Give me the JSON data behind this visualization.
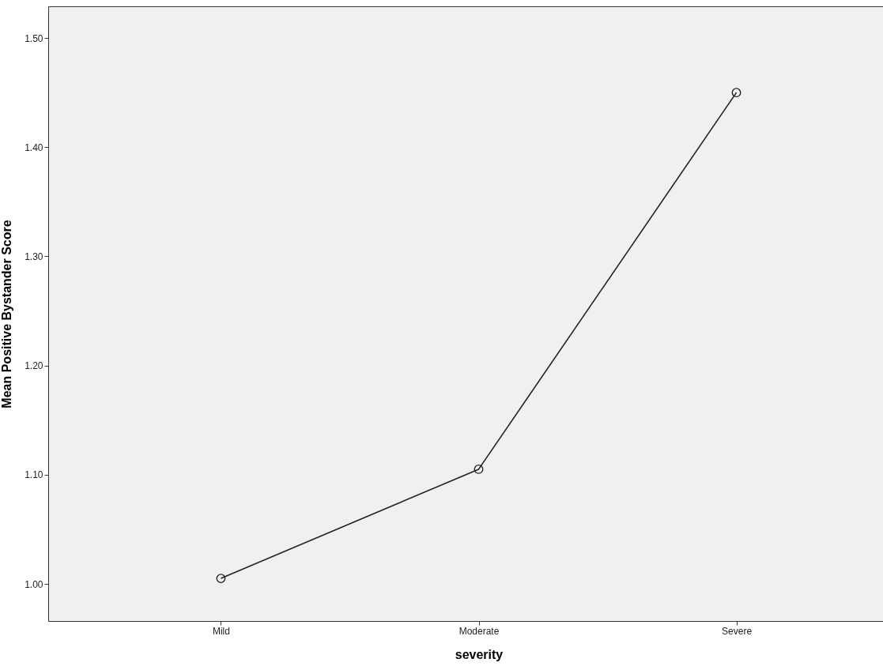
{
  "chart_data": {
    "type": "line",
    "xlabel": "severity",
    "ylabel": "Mean Positive Bystander Score",
    "categories": [
      "Mild",
      "Moderate",
      "Severe"
    ],
    "series": [
      {
        "color": "#222222",
        "values": [
          1.005,
          1.105,
          1.45
        ]
      }
    ],
    "ylim": [
      0.966,
      1.529
    ],
    "yticks": [
      {
        "value": 1.0,
        "label": "1.00"
      },
      {
        "value": 1.1,
        "label": "1.10"
      },
      {
        "value": 1.2,
        "label": "1.20"
      },
      {
        "value": 1.3,
        "label": "1.30"
      },
      {
        "value": 1.4,
        "label": "1.40"
      },
      {
        "value": 1.5,
        "label": "1.50"
      }
    ],
    "grid": false,
    "legend": false,
    "marker": "circle",
    "line_style": "solid"
  }
}
